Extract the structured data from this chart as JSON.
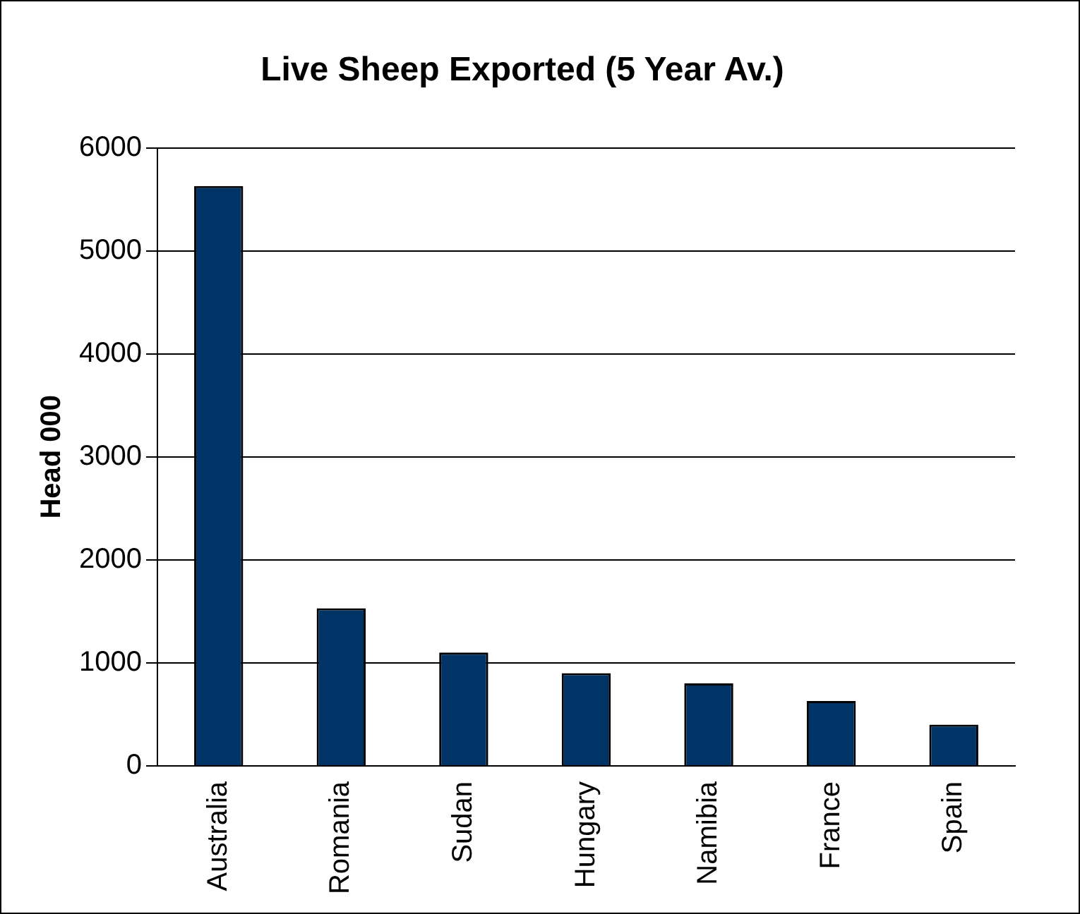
{
  "chart_data": {
    "type": "bar",
    "title": "Live Sheep Exported (5 Year Av.)",
    "ylabel": "Head 000",
    "categories": [
      "Australia",
      "Romania",
      "Sudan",
      "Hungary",
      "Namibia",
      "France",
      "Spain"
    ],
    "values": [
      5630,
      1530,
      1100,
      900,
      800,
      630,
      400
    ],
    "color": "#003366",
    "ylim": [
      0,
      6000
    ],
    "yticks": [
      0,
      1000,
      2000,
      3000,
      4000,
      5000,
      6000
    ],
    "grid": "y",
    "legend": false
  }
}
